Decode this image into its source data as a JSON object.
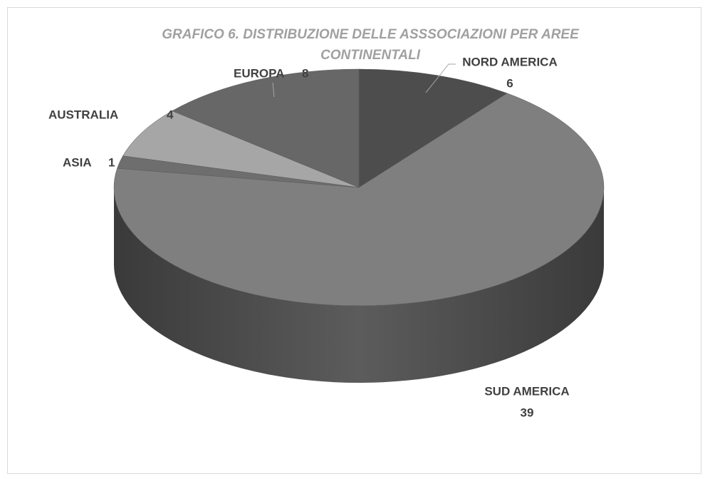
{
  "chart_data": {
    "type": "pie",
    "title": "GRAFICO 6. DISTRIBUZIONE DELLE ASSSOCIAZIONI PER AREE CONTINENTALI",
    "categories": [
      "NORD AMERICA",
      "SUD AMERICA",
      "ASIA",
      "AUSTRALIA",
      "EUROPA"
    ],
    "values": [
      6,
      39,
      1,
      4,
      8
    ],
    "colors": [
      "#4d4d4d",
      "#7f7f7f",
      "#6e6e6e",
      "#a6a6a6",
      "#676767"
    ]
  }
}
